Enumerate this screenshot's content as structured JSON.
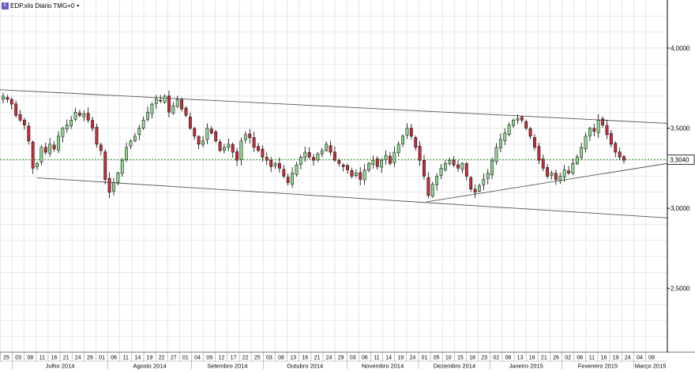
{
  "window": {
    "icon": "edp-icon",
    "title": "EDP.xlis Diário TMG+0",
    "menu_arrow": "▾"
  },
  "colors": {
    "up_candle": "#8fd48f",
    "down_candle": "#c4303a",
    "wick": "#000000",
    "grid": "#d9d9d9",
    "price_line": "#2a9d2a",
    "trend_line": "#555555",
    "axis_bg": "#ececec",
    "price_tag_bg": "#ffffff"
  },
  "chart_data": {
    "type": "candlestick",
    "y_ticks": [
      "2,5000",
      "3,0000",
      "3,5000",
      "4,0000"
    ],
    "ylim": [
      2.1,
      4.3
    ],
    "grid": true,
    "current_price": 3.304,
    "current_price_label": "3,3040",
    "day_labels": [
      "25",
      "03",
      "08",
      "11",
      "16",
      "21",
      "24",
      "29",
      "01",
      "06",
      "11",
      "14",
      "19",
      "22",
      "27",
      "01",
      "04",
      "09",
      "12",
      "17",
      "22",
      "25",
      "03",
      "08",
      "13",
      "16",
      "21",
      "24",
      "29",
      "03",
      "06",
      "11",
      "14",
      "19",
      "24",
      "01",
      "05",
      "10",
      "15",
      "18",
      "23",
      "02",
      "08",
      "13",
      "16",
      "21",
      "26",
      "02",
      "06",
      "11",
      "16",
      "19",
      "24",
      "04",
      "09"
    ],
    "month_labels": [
      "Julho 2014",
      "Agosto 2014",
      "Setembro 2014",
      "Outubro 2014",
      "Novembro 2014",
      "Dezembro 2014",
      "Janeiro 2015",
      "Fevereiro 2015",
      "Março 2015"
    ],
    "closes": [
      3.7,
      3.68,
      3.65,
      3.58,
      3.55,
      3.52,
      3.42,
      3.25,
      3.28,
      3.38,
      3.35,
      3.4,
      3.37,
      3.45,
      3.5,
      3.52,
      3.55,
      3.6,
      3.58,
      3.59,
      3.55,
      3.5,
      3.4,
      3.36,
      3.18,
      3.1,
      3.16,
      3.22,
      3.3,
      3.38,
      3.42,
      3.45,
      3.5,
      3.55,
      3.6,
      3.65,
      3.68,
      3.67,
      3.7,
      3.6,
      3.64,
      3.68,
      3.62,
      3.58,
      3.5,
      3.45,
      3.4,
      3.42,
      3.5,
      3.47,
      3.42,
      3.36,
      3.38,
      3.4,
      3.35,
      3.3,
      3.42,
      3.46,
      3.44,
      3.38,
      3.36,
      3.32,
      3.3,
      3.26,
      3.28,
      3.25,
      3.2,
      3.16,
      3.22,
      3.27,
      3.32,
      3.35,
      3.32,
      3.3,
      3.34,
      3.36,
      3.4,
      3.35,
      3.3,
      3.28,
      3.26,
      3.24,
      3.2,
      3.22,
      3.18,
      3.24,
      3.28,
      3.3,
      3.26,
      3.3,
      3.33,
      3.28,
      3.35,
      3.4,
      3.45,
      3.5,
      3.45,
      3.38,
      3.3,
      3.2,
      3.08,
      3.15,
      3.2,
      3.25,
      3.28,
      3.3,
      3.27,
      3.25,
      3.28,
      3.2,
      3.12,
      3.1,
      3.14,
      3.18,
      3.22,
      3.3,
      3.38,
      3.43,
      3.47,
      3.52,
      3.55,
      3.56,
      3.55,
      3.5,
      3.45,
      3.38,
      3.3,
      3.25,
      3.2,
      3.22,
      3.18,
      3.2,
      3.24,
      3.22,
      3.28,
      3.32,
      3.38,
      3.45,
      3.5,
      3.48,
      3.55,
      3.52,
      3.46,
      3.4,
      3.35,
      3.32,
      3.3
    ],
    "trendlines": [
      {
        "start": [
          "25 Jun 2014",
          3.74
        ],
        "end": [
          "Mar 2015",
          3.53
        ]
      },
      {
        "start": [
          "09 Jul 2014",
          3.19
        ],
        "end": [
          "Mar 2015",
          2.94
        ]
      },
      {
        "start": [
          "15 Dez 2014",
          3.04
        ],
        "end": [
          "Mar 2015",
          3.28
        ]
      }
    ]
  }
}
